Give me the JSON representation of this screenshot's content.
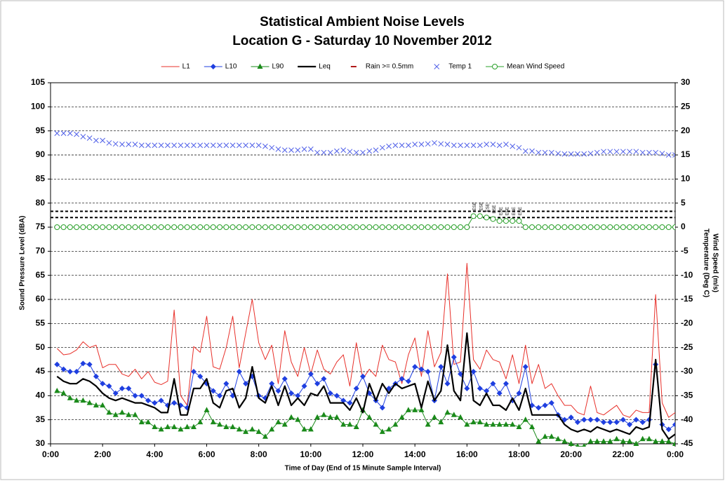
{
  "chart_data": {
    "type": "line",
    "title": "Statistical Ambient Noise Levels",
    "subtitle": "Location G - Saturday 10 November 2012",
    "x_label": "Time of Day (End of 15 Minute  Sample Interval)",
    "y_label": "Sound Pressure Level (dBA)",
    "y2_label": "Wind Speed (m/s)",
    "y2_label_2": "Temperature (Deg C)",
    "grid": true,
    "legend": "top",
    "xlim": [
      0,
      24
    ],
    "xticks": [
      {
        "value": 0,
        "label": "0:00"
      },
      {
        "value": 2,
        "label": "2:00"
      },
      {
        "value": 4,
        "label": "4:00"
      },
      {
        "value": 6,
        "label": "6:00"
      },
      {
        "value": 8,
        "label": "8:00"
      },
      {
        "value": 10,
        "label": "10:00"
      },
      {
        "value": 12,
        "label": "12:00"
      },
      {
        "value": 14,
        "label": "14:00"
      },
      {
        "value": 16,
        "label": "16:00"
      },
      {
        "value": 18,
        "label": "18:00"
      },
      {
        "value": 20,
        "label": "20:00"
      },
      {
        "value": 22,
        "label": "22:00"
      },
      {
        "value": 24,
        "label": "0:00"
      }
    ],
    "ylim": [
      30,
      105
    ],
    "yticks": [
      30,
      35,
      40,
      45,
      50,
      55,
      60,
      65,
      70,
      75,
      80,
      85,
      90,
      95,
      100,
      105
    ],
    "y2lim": [
      -45,
      30
    ],
    "y2ticks": [
      -45,
      -40,
      -35,
      -30,
      -25,
      -20,
      -15,
      -10,
      -5,
      0,
      5,
      10,
      15,
      20,
      25,
      30
    ],
    "ref_lines": [
      {
        "value": 3.3,
        "axis": "y2"
      },
      {
        "value": 2.0,
        "axis": "y2"
      }
    ],
    "x": [
      0.25,
      0.5,
      0.75,
      1,
      1.25,
      1.5,
      1.75,
      2,
      2.25,
      2.5,
      2.75,
      3,
      3.25,
      3.5,
      3.75,
      4,
      4.25,
      4.5,
      4.75,
      5,
      5.25,
      5.5,
      5.75,
      6,
      6.25,
      6.5,
      6.75,
      7,
      7.25,
      7.5,
      7.75,
      8,
      8.25,
      8.5,
      8.75,
      9,
      9.25,
      9.5,
      9.75,
      10,
      10.25,
      10.5,
      10.75,
      11,
      11.25,
      11.5,
      11.75,
      12,
      12.25,
      12.5,
      12.75,
      13,
      13.25,
      13.5,
      13.75,
      14,
      14.25,
      14.5,
      14.75,
      15,
      15.25,
      15.5,
      15.75,
      16,
      16.25,
      16.5,
      16.75,
      17,
      17.25,
      17.5,
      17.75,
      18,
      18.25,
      18.5,
      18.75,
      19,
      19.25,
      19.5,
      19.75,
      20,
      20.25,
      20.5,
      20.75,
      21,
      21.25,
      21.5,
      21.75,
      22,
      22.25,
      22.5,
      22.75,
      23,
      23.25,
      23.5,
      23.75,
      24
    ],
    "series": [
      {
        "name": "L1",
        "color": "#e8302a",
        "marker": null,
        "line": true,
        "width": 1,
        "values": [
          49.8,
          48.5,
          48.7,
          49.5,
          51.2,
          50.0,
          50.5,
          45.8,
          46.5,
          46.5,
          44.5,
          44.0,
          45.5,
          43.5,
          45.0,
          42.8,
          42.3,
          43.0,
          57.8,
          40.0,
          38.0,
          50.2,
          49.0,
          56.5,
          46.0,
          45.5,
          50.0,
          56.5,
          45.8,
          53.0,
          60.0,
          51.0,
          47.5,
          50.5,
          42.5,
          53.5,
          47.0,
          44.0,
          50.0,
          44.5,
          49.5,
          45.5,
          44.5,
          47.0,
          48.5,
          42.0,
          51.0,
          43.5,
          45.5,
          44.0,
          50.5,
          47.5,
          47.0,
          42.5,
          48.5,
          52.0,
          44.0,
          53.5,
          46.0,
          49.0,
          65.3,
          46.5,
          47.0,
          67.5,
          47.5,
          45.5,
          49.5,
          47.5,
          47.0,
          43.5,
          48.5,
          42.5,
          50.5,
          42.5,
          46.5,
          41.5,
          42.5,
          40.0,
          38.0,
          38.0,
          36.5,
          36.0,
          42.0,
          36.5,
          36.0,
          37.0,
          38.0,
          36.0,
          35.5,
          37.0,
          36.5,
          36.5,
          61.0,
          38.5,
          35.5,
          36.5
        ]
      },
      {
        "name": "L10",
        "color": "#1f3fe0",
        "marker": "diamond",
        "line": true,
        "width": 1,
        "values": [
          46.5,
          45.5,
          45.0,
          45.0,
          46.7,
          46.5,
          44.0,
          42.5,
          42.0,
          40.5,
          41.5,
          41.5,
          40.0,
          40.0,
          39.0,
          38.5,
          39.0,
          38.0,
          38.5,
          38.0,
          37.5,
          45.0,
          44.0,
          42.5,
          41.0,
          40.0,
          42.5,
          40.0,
          45.0,
          42.5,
          44.0,
          40.0,
          39.5,
          42.5,
          41.0,
          43.5,
          40.5,
          40.0,
          42.0,
          44.5,
          42.5,
          43.5,
          40.5,
          40.0,
          39.0,
          38.5,
          41.5,
          44.0,
          40.5,
          39.0,
          37.5,
          41.5,
          42.5,
          43.5,
          43.0,
          46.0,
          45.5,
          45.0,
          39.0,
          46.0,
          42.5,
          48.0,
          44.5,
          41.5,
          45.0,
          41.5,
          41.0,
          42.5,
          40.5,
          42.5,
          39.0,
          40.5,
          46.0,
          38.0,
          37.5,
          38.0,
          38.5,
          36.0,
          35.0,
          35.5,
          34.5,
          35.0,
          35.0,
          35.0,
          34.5,
          34.5,
          34.5,
          35.0,
          34.0,
          35.0,
          34.5,
          35.0,
          46.5,
          34.0,
          33.0,
          34.0
        ]
      },
      {
        "name": "L90",
        "color": "#1a8a1a",
        "marker": "triangle",
        "line": true,
        "width": 1,
        "values": [
          41.0,
          40.5,
          39.5,
          39.0,
          39.0,
          38.5,
          38.0,
          38.0,
          36.5,
          36.0,
          36.5,
          36.0,
          36.0,
          34.5,
          34.5,
          33.5,
          33.0,
          33.5,
          33.5,
          33.0,
          33.5,
          33.5,
          34.5,
          37.0,
          34.5,
          34.0,
          33.5,
          33.5,
          33.0,
          32.5,
          33.0,
          32.5,
          31.5,
          33.0,
          34.5,
          34.0,
          35.5,
          35.0,
          33.0,
          33.0,
          35.5,
          36.0,
          35.5,
          35.5,
          34.0,
          34.0,
          33.5,
          37.0,
          35.5,
          34.0,
          32.5,
          33.0,
          34.0,
          35.5,
          37.0,
          37.0,
          37.0,
          34.0,
          35.5,
          34.5,
          36.5,
          36.0,
          35.5,
          34.0,
          34.5,
          34.5,
          34.0,
          34.0,
          34.0,
          34.0,
          34.0,
          33.5,
          35.0,
          33.5,
          30.5,
          31.5,
          31.5,
          31.0,
          30.5,
          30.0,
          29.5,
          29.5,
          30.5,
          30.5,
          30.5,
          30.5,
          31.0,
          30.5,
          30.5,
          30.0,
          31.0,
          31.0,
          30.5,
          30.5,
          30.5,
          30.0
        ]
      },
      {
        "name": "Leq",
        "color": "#000000",
        "marker": null,
        "line": true,
        "width": 2.2,
        "values": [
          44.0,
          43.0,
          42.5,
          42.5,
          43.5,
          43.0,
          42.0,
          40.5,
          39.5,
          39.0,
          39.5,
          39.0,
          38.5,
          38.5,
          38.0,
          37.5,
          36.5,
          36.5,
          43.5,
          36.0,
          36.0,
          41.5,
          41.5,
          43.5,
          38.5,
          37.5,
          41.0,
          41.5,
          37.5,
          39.5,
          46.0,
          39.5,
          38.5,
          42.0,
          38.0,
          42.0,
          38.0,
          39.5,
          38.0,
          40.5,
          40.0,
          42.0,
          38.5,
          38.5,
          38.5,
          37.0,
          39.5,
          36.5,
          42.5,
          39.0,
          42.5,
          40.5,
          42.5,
          41.5,
          42.0,
          42.5,
          37.5,
          43.0,
          39.0,
          41.0,
          50.5,
          41.0,
          39.0,
          53.0,
          39.0,
          38.0,
          40.5,
          38.0,
          38.0,
          37.0,
          39.5,
          37.0,
          41.5,
          36.0,
          36.0,
          36.0,
          36.0,
          36.0,
          34.0,
          33.0,
          32.5,
          33.0,
          32.5,
          33.5,
          33.0,
          32.5,
          33.0,
          32.5,
          32.0,
          33.5,
          33.0,
          33.5,
          47.5,
          33.0,
          31.0,
          32.0
        ]
      },
      {
        "name": "Rain >= 0.5mm",
        "color": "#b01818",
        "marker": "dash",
        "line": false,
        "width": 1,
        "values": [
          null,
          null,
          null,
          null,
          null,
          null,
          null,
          null,
          null,
          null,
          null,
          null,
          null,
          null,
          null,
          null,
          null,
          null,
          null,
          null,
          null,
          null,
          null,
          null,
          null,
          null,
          null,
          null,
          null,
          null,
          null,
          null,
          null,
          null,
          null,
          null,
          null,
          null,
          null,
          null,
          null,
          null,
          null,
          null,
          null,
          null,
          null,
          null,
          null,
          null,
          null,
          null,
          null,
          null,
          null,
          null,
          null,
          null,
          null,
          null,
          null,
          null,
          null,
          null,
          null,
          null,
          null,
          null,
          null,
          null,
          null,
          null,
          null,
          null,
          null,
          null,
          null,
          null,
          null,
          null,
          null,
          null,
          null,
          null,
          null,
          null,
          null,
          null,
          null,
          null,
          null,
          null,
          null,
          null,
          null,
          null
        ]
      },
      {
        "name": "Temp 1",
        "color": "#4f5fe8",
        "marker": "x",
        "line": false,
        "width": 1,
        "axis": "y2",
        "values": [
          19.5,
          19.5,
          19.5,
          19.3,
          18.8,
          18.5,
          18.0,
          18.0,
          17.5,
          17.3,
          17.2,
          17.2,
          17.2,
          17.0,
          17.0,
          17.0,
          17.0,
          17.0,
          17.0,
          17.0,
          17.0,
          17.0,
          17.0,
          17.0,
          17.0,
          17.0,
          17.0,
          17.0,
          17.0,
          17.0,
          17.0,
          17.0,
          16.8,
          16.5,
          16.2,
          16.0,
          16.0,
          16.0,
          16.2,
          16.2,
          15.5,
          15.5,
          15.5,
          15.8,
          16.0,
          15.7,
          15.5,
          15.5,
          15.8,
          16.0,
          16.5,
          16.8,
          17.0,
          17.0,
          17.0,
          17.2,
          17.2,
          17.3,
          17.5,
          17.3,
          17.2,
          17.0,
          17.0,
          17.0,
          17.0,
          17.0,
          17.2,
          17.2,
          17.0,
          17.2,
          16.8,
          16.5,
          15.8,
          15.8,
          15.5,
          15.5,
          15.5,
          15.3,
          15.2,
          15.2,
          15.2,
          15.2,
          15.3,
          15.5,
          15.7,
          15.7,
          15.7,
          15.7,
          15.7,
          15.7,
          15.5,
          15.5,
          15.5,
          15.3,
          15.0,
          15.0
        ]
      },
      {
        "name": "Mean Wind Speed",
        "color": "#2aa02a",
        "marker": "circle",
        "line": true,
        "width": 1,
        "axis": "y2",
        "values": [
          0,
          0,
          0,
          0,
          0,
          0,
          0,
          0,
          0,
          0,
          0,
          0,
          0,
          0,
          0,
          0,
          0,
          0,
          0,
          0,
          0,
          0,
          0,
          0,
          0,
          0,
          0,
          0,
          0,
          0,
          0,
          0,
          0,
          0,
          0,
          0,
          0,
          0,
          0,
          0,
          0,
          0,
          0,
          0,
          0,
          0,
          0,
          0,
          0,
          0,
          0,
          0,
          0,
          0,
          0,
          0,
          0,
          0,
          0,
          0,
          0,
          0,
          0,
          0,
          2.3,
          2.3,
          2.0,
          1.7,
          1.3,
          1.3,
          1.3,
          1.3,
          0,
          0,
          0,
          0,
          0,
          0,
          0,
          0,
          0,
          0,
          0,
          0,
          0,
          0,
          0,
          0,
          0,
          0,
          0,
          0,
          0,
          0,
          0,
          0
        ]
      }
    ],
    "annotations": [
      {
        "x": 16.25,
        "text": "ESE"
      },
      {
        "x": 16.5,
        "text": "ESE"
      },
      {
        "x": 16.75,
        "text": "ESE"
      },
      {
        "x": 17,
        "text": "ESE"
      },
      {
        "x": 17.25,
        "text": "ESE"
      },
      {
        "x": 17.5,
        "text": "ESE"
      },
      {
        "x": 17.75,
        "text": "ESE"
      },
      {
        "x": 18,
        "text": "ESE"
      }
    ]
  }
}
